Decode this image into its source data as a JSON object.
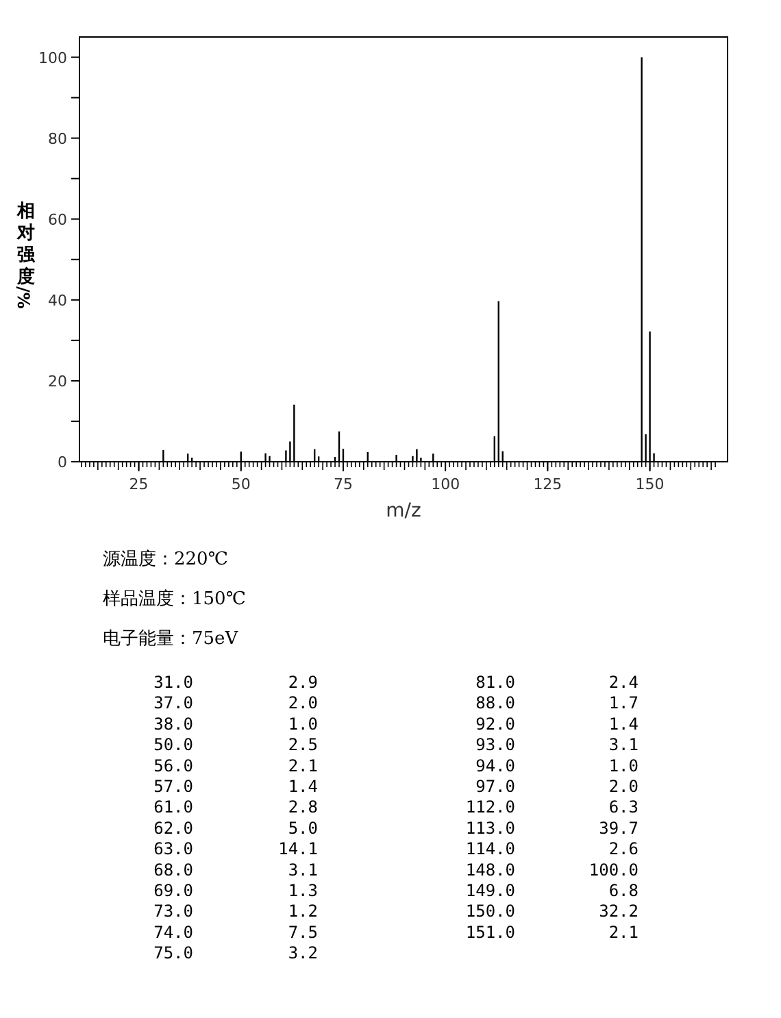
{
  "chart_data": [
    {
      "type": "bar",
      "xlabel": "m/z",
      "ylabel": "相对强度/%",
      "x": [
        31.0,
        37.0,
        38.0,
        50.0,
        56.0,
        57.0,
        61.0,
        62.0,
        63.0,
        68.0,
        69.0,
        73.0,
        74.0,
        75.0,
        81.0,
        88.0,
        92.0,
        93.0,
        94.0,
        97.0,
        112.0,
        113.0,
        114.0,
        148.0,
        149.0,
        150.0,
        151.0
      ],
      "values": [
        2.9,
        2.0,
        1.0,
        2.5,
        2.1,
        1.4,
        2.8,
        5.0,
        14.1,
        3.1,
        1.3,
        1.2,
        7.5,
        3.2,
        2.4,
        1.7,
        1.4,
        3.1,
        1.0,
        2.0,
        6.3,
        39.7,
        2.6,
        100.0,
        6.8,
        32.2,
        2.1
      ],
      "color": "#000000",
      "xlim": [
        10.5,
        169
      ],
      "ylim": [
        0,
        105
      ],
      "grid": false,
      "xticks": [
        25,
        50,
        75,
        100,
        125,
        150
      ],
      "yticks": [
        0,
        {
          "value": 10,
          "label": null
        },
        20,
        {
          "value": 30,
          "label": null
        },
        40,
        {
          "value": 50,
          "label": null
        },
        60,
        {
          "value": 70,
          "label": null
        },
        80,
        {
          "value": 90,
          "label": null
        },
        100
      ],
      "annotations": [
        "源温度：220℃",
        "样品温度：150℃",
        "电子能量：75eV"
      ]
    },
    {
      "type": "other",
      "categories": [
        "31.0",
        "37.0",
        "38.0",
        "50.0",
        "56.0",
        "57.0",
        "61.0",
        "62.0",
        "63.0",
        "68.0",
        "69.0",
        "73.0",
        "74.0",
        "75.0",
        "81.0",
        "88.0",
        "92.0",
        "93.0",
        "94.0",
        "97.0",
        "112.0",
        "113.0",
        "114.0",
        "148.0",
        "149.0",
        "150.0",
        "151.0"
      ],
      "values": [
        2.9,
        2.0,
        1.0,
        2.5,
        2.1,
        1.4,
        2.8,
        5.0,
        14.1,
        3.1,
        1.3,
        1.2,
        7.5,
        3.2,
        2.4,
        1.7,
        1.4,
        3.1,
        1.0,
        2.0,
        6.3,
        39.7,
        2.6,
        100.0,
        6.8,
        32.2,
        2.1
      ],
      "value_labels": [
        "2.9",
        "2.0",
        "1.0",
        "2.5",
        "2.1",
        "1.4",
        "2.8",
        "5.0",
        "14.1",
        "3.1",
        "1.3",
        "1.2",
        "7.5",
        "3.2",
        "2.4",
        "1.7",
        "1.4",
        "3.1",
        "1.0",
        "2.0",
        "6.3",
        "39.7",
        "2.6",
        "100.0",
        "6.8",
        "32.2",
        "2.1"
      ]
    }
  ]
}
